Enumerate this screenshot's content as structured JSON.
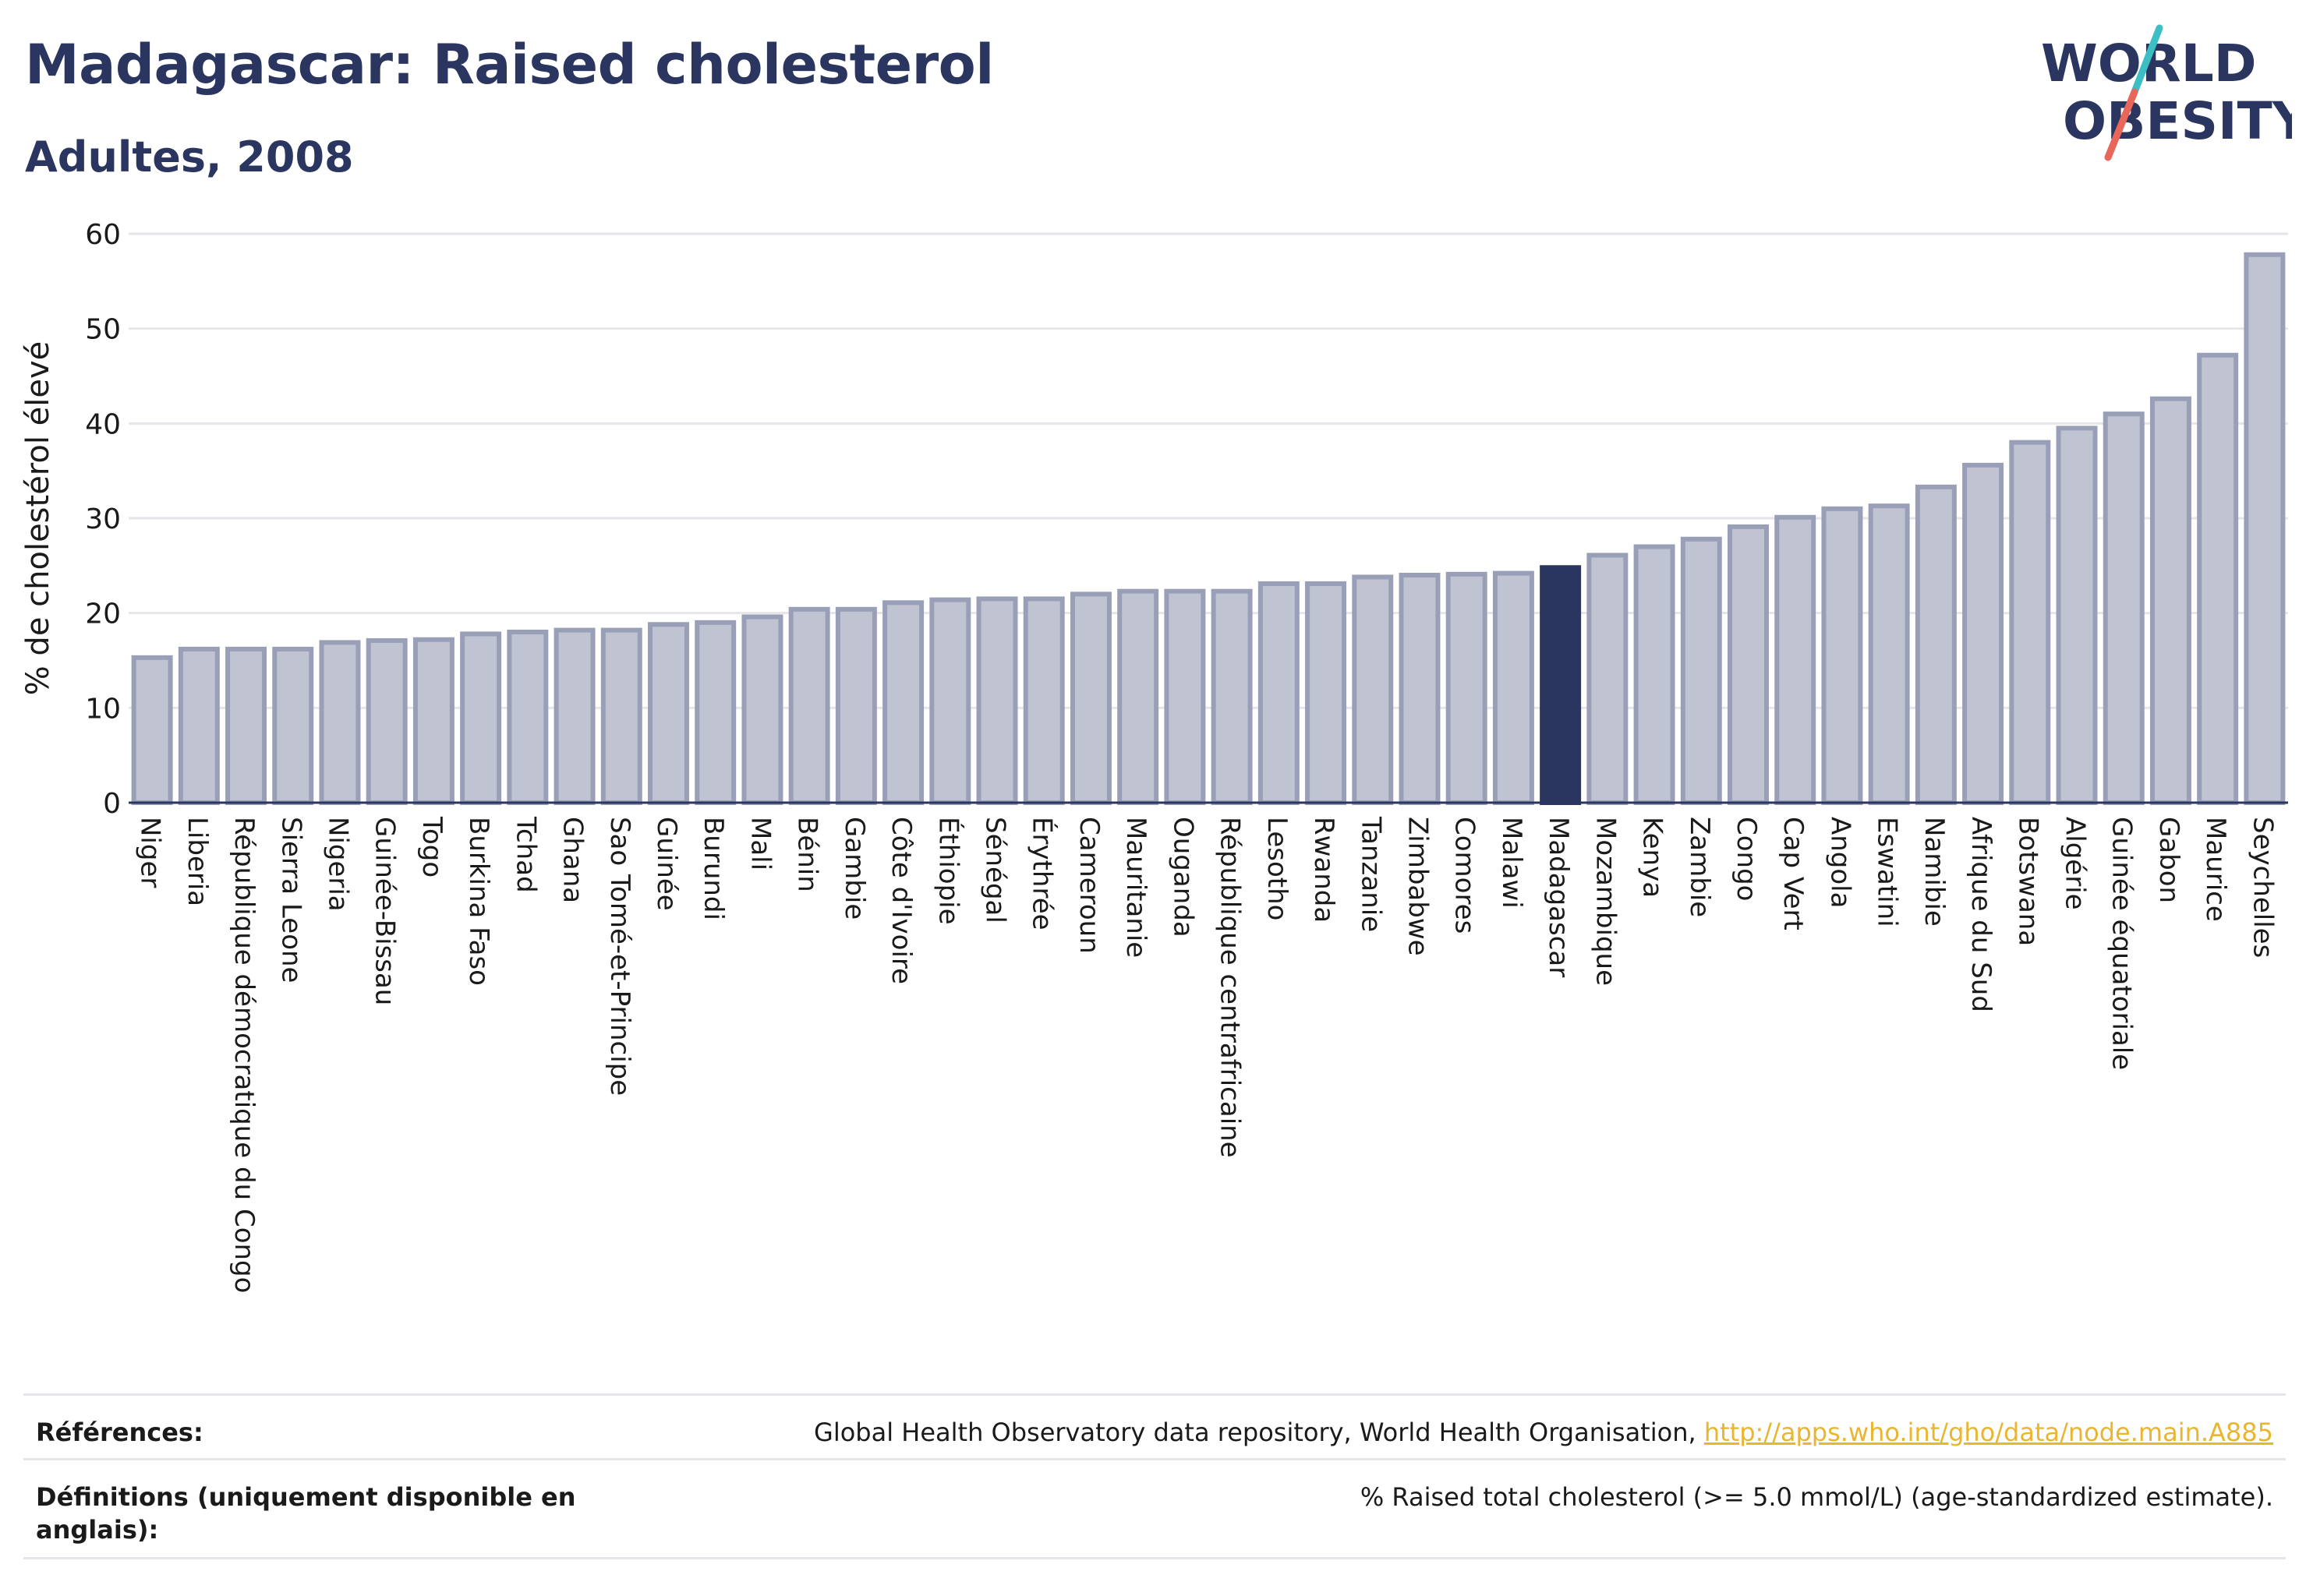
{
  "header": {
    "title": "Madagascar: Raised cholesterol",
    "subtitle": "Adultes, 2008"
  },
  "logo": {
    "line1": "WORLD",
    "line2": "OBESITY"
  },
  "colors": {
    "bar": "#bfc3d2",
    "bar_border": "#9a9fb8",
    "highlight": "#2a3560",
    "text": "#2a3560",
    "grid": "#e6e6ea",
    "link": "#e8b630"
  },
  "chart_data": {
    "type": "bar",
    "title": "Madagascar: Raised cholesterol",
    "subtitle": "Adultes, 2008",
    "xlabel": "",
    "ylabel": "% de cholestérol élevé",
    "ylim": [
      0,
      60
    ],
    "yticks": [
      0,
      10,
      20,
      30,
      40,
      50,
      60
    ],
    "grid": true,
    "highlight": "Madagascar",
    "categories": [
      "Niger",
      "Liberia",
      "République démocratique du Congo",
      "Sierra Leone",
      "Nigeria",
      "Guinée-Bissau",
      "Togo",
      "Burkina Faso",
      "Tchad",
      "Ghana",
      "Sao Tomé-et-Principe",
      "Guinée",
      "Burundi",
      "Mali",
      "Bénin",
      "Gambie",
      "Côte d'Ivoire",
      "Éthiopie",
      "Sénégal",
      "Érythrée",
      "Cameroun",
      "Mauritanie",
      "Ouganda",
      "République centrafricaine",
      "Lesotho",
      "Rwanda",
      "Tanzanie",
      "Zimbabwe",
      "Comores",
      "Malawi",
      "Madagascar",
      "Mozambique",
      "Kenya",
      "Zambie",
      "Congo",
      "Cap Vert",
      "Angola",
      "Eswatini",
      "Namibie",
      "Afrique du Sud",
      "Botswana",
      "Algérie",
      "Guinée équatoriale",
      "Gabon",
      "Maurice",
      "Seychelles"
    ],
    "values": [
      15.3,
      16.2,
      16.2,
      16.2,
      16.9,
      17.1,
      17.2,
      17.8,
      18.0,
      18.2,
      18.2,
      18.8,
      19.0,
      19.6,
      20.4,
      20.4,
      21.1,
      21.4,
      21.5,
      21.5,
      22.0,
      22.3,
      22.3,
      22.3,
      23.1,
      23.1,
      23.8,
      24.0,
      24.1,
      24.2,
      24.8,
      26.1,
      27.0,
      27.8,
      29.1,
      30.1,
      31.0,
      31.3,
      33.3,
      35.6,
      38.0,
      39.5,
      41.0,
      42.6,
      47.2,
      57.8
    ]
  },
  "footer": {
    "references_label": "Références:",
    "references_text": "Global Health Observatory data repository, World Health Organisation, ",
    "references_link": "http://apps.who.int/gho/data/node.main.A885",
    "definitions_label": "Définitions (uniquement disponible en anglais):",
    "definitions_text": "% Raised total cholesterol (>= 5.0 mmol/L) (age-standardized estimate)."
  }
}
